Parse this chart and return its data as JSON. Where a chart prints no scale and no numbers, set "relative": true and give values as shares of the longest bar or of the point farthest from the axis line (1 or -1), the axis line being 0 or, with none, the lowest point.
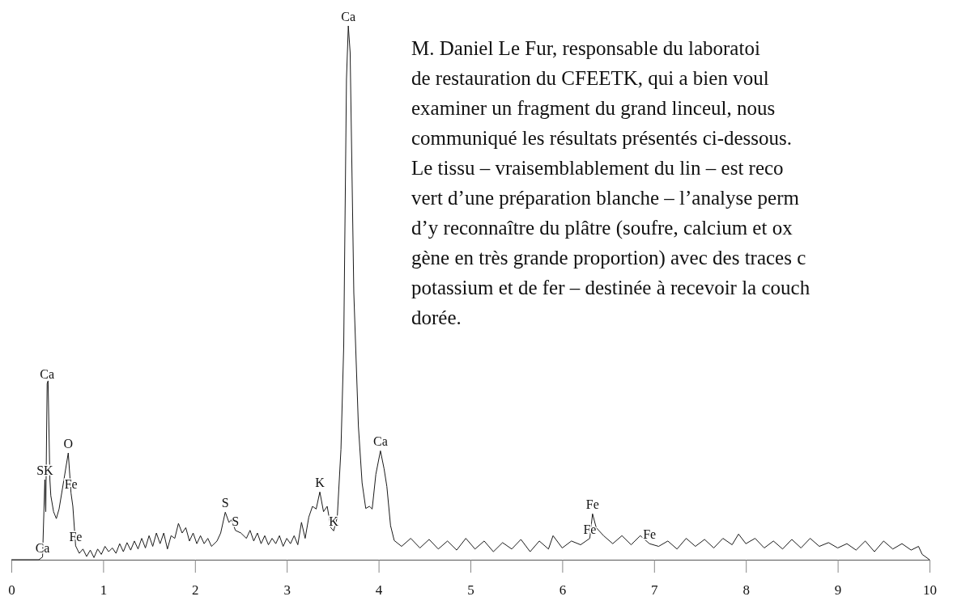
{
  "chart_data": {
    "type": "line",
    "relative": true,
    "color": "#1a1a1a",
    "xlim": [
      0,
      10
    ],
    "xticks": [
      0,
      1,
      2,
      3,
      4,
      5,
      6,
      7,
      8,
      9,
      10
    ],
    "x": [
      0,
      0.3,
      0.34,
      0.365,
      0.375,
      0.39,
      0.4,
      0.42,
      0.43,
      0.46,
      0.49,
      0.52,
      0.57,
      0.62,
      0.65,
      0.67,
      0.7,
      0.74,
      0.78,
      0.82,
      0.86,
      0.9,
      0.94,
      0.98,
      1.02,
      1.06,
      1.1,
      1.14,
      1.18,
      1.22,
      1.26,
      1.3,
      1.34,
      1.38,
      1.42,
      1.46,
      1.5,
      1.54,
      1.58,
      1.62,
      1.66,
      1.7,
      1.74,
      1.78,
      1.82,
      1.86,
      1.9,
      1.94,
      1.98,
      2.02,
      2.06,
      2.1,
      2.14,
      2.18,
      2.24,
      2.28,
      2.33,
      2.37,
      2.4,
      2.44,
      2.5,
      2.56,
      2.6,
      2.64,
      2.68,
      2.72,
      2.76,
      2.8,
      2.84,
      2.88,
      2.92,
      2.96,
      3,
      3.04,
      3.08,
      3.12,
      3.16,
      3.2,
      3.24,
      3.28,
      3.32,
      3.36,
      3.4,
      3.44,
      3.48,
      3.51,
      3.55,
      3.59,
      3.62,
      3.65,
      3.67,
      3.69,
      3.73,
      3.78,
      3.82,
      3.86,
      3.9,
      3.93,
      3.97,
      4.02,
      4.06,
      4.09,
      4.13,
      4.17,
      4.25,
      4.35,
      4.45,
      4.55,
      4.65,
      4.75,
      4.85,
      4.95,
      5.05,
      5.15,
      5.25,
      5.35,
      5.45,
      5.55,
      5.65,
      5.75,
      5.85,
      5.9,
      6,
      6.1,
      6.2,
      6.3,
      6.33,
      6.37,
      6.45,
      6.55,
      6.65,
      6.75,
      6.85,
      6.95,
      7.05,
      7.15,
      7.25,
      7.35,
      7.45,
      7.55,
      7.65,
      7.75,
      7.85,
      7.92,
      8,
      8.1,
      8.2,
      8.3,
      8.4,
      8.5,
      8.6,
      8.7,
      8.8,
      8.9,
      9,
      9.1,
      9.2,
      9.3,
      9.4,
      9.5,
      9.6,
      9.7,
      9.8,
      9.88,
      9.92,
      10
    ],
    "values": [
      0,
      0,
      0.005,
      0.15,
      0.09,
      0.33,
      0.335,
      0.15,
      0.12,
      0.09,
      0.077,
      0.095,
      0.147,
      0.2,
      0.125,
      0.1,
      0.026,
      0.012,
      0.02,
      0.006,
      0.018,
      0.004,
      0.02,
      0.01,
      0.025,
      0.015,
      0.022,
      0.012,
      0.03,
      0.015,
      0.032,
      0.018,
      0.035,
      0.02,
      0.04,
      0.022,
      0.045,
      0.025,
      0.05,
      0.03,
      0.05,
      0.02,
      0.045,
      0.04,
      0.068,
      0.05,
      0.06,
      0.035,
      0.05,
      0.03,
      0.045,
      0.03,
      0.04,
      0.025,
      0.035,
      0.05,
      0.089,
      0.07,
      0.075,
      0.055,
      0.05,
      0.04,
      0.055,
      0.035,
      0.05,
      0.03,
      0.045,
      0.028,
      0.04,
      0.03,
      0.045,
      0.025,
      0.04,
      0.03,
      0.045,
      0.028,
      0.07,
      0.04,
      0.08,
      0.1,
      0.095,
      0.127,
      0.09,
      0.1,
      0.06,
      0.054,
      0.08,
      0.207,
      0.4,
      0.9,
      1,
      0.95,
      0.5,
      0.25,
      0.144,
      0.096,
      0.1,
      0.095,
      0.16,
      0.204,
      0.17,
      0.137,
      0.064,
      0.036,
      0.025,
      0.04,
      0.022,
      0.038,
      0.02,
      0.035,
      0.018,
      0.04,
      0.02,
      0.035,
      0.015,
      0.032,
      0.02,
      0.038,
      0.015,
      0.035,
      0.02,
      0.045,
      0.022,
      0.035,
      0.028,
      0.04,
      0.086,
      0.06,
      0.045,
      0.03,
      0.045,
      0.028,
      0.045,
      0.03,
      0.025,
      0.035,
      0.02,
      0.04,
      0.025,
      0.038,
      0.022,
      0.04,
      0.028,
      0.048,
      0.03,
      0.04,
      0.022,
      0.035,
      0.02,
      0.038,
      0.022,
      0.04,
      0.025,
      0.032,
      0.022,
      0.03,
      0.018,
      0.035,
      0.015,
      0.035,
      0.02,
      0.03,
      0.018,
      0.025,
      0.01,
      0
    ],
    "annotations": [
      {
        "text": "Ca",
        "x": 3.67,
        "y": 1
      },
      {
        "text": "SK",
        "x": 0.365,
        "y": 0.15
      },
      {
        "text": "Ca",
        "x": 0.34,
        "y": 0.005
      },
      {
        "text": "Ca",
        "x": 0.39,
        "y": 0.33
      },
      {
        "text": "O",
        "x": 0.62,
        "y": 0.2
      },
      {
        "text": "Fe",
        "x": 0.65,
        "y": 0.125
      },
      {
        "text": "Fe",
        "x": 0.7,
        "y": 0.026
      },
      {
        "text": "S",
        "x": 2.33,
        "y": 0.089
      },
      {
        "text": "S",
        "x": 2.44,
        "y": 0.055
      },
      {
        "text": "K",
        "x": 3.36,
        "y": 0.127
      },
      {
        "text": "K",
        "x": 3.51,
        "y": 0.054
      },
      {
        "text": "Ca",
        "x": 4.02,
        "y": 0.204
      },
      {
        "text": "Fe",
        "x": 6.33,
        "y": 0.086
      },
      {
        "text": "Fe",
        "x": 6.3,
        "y": 0.04
      },
      {
        "text": "Fe",
        "x": 6.95,
        "y": 0.03
      },
      "M. Daniel Le Fur, responsable du laboratoi",
      "de restauration du CFEETK, qui a bien voul",
      "examiner un fragment du grand linceul, nous",
      "communiqué les résultats présentés ci-dessous.",
      "Le tissu – vraisemblablement du lin – est reco",
      "vert d’une préparation blanche – l’analyse perm",
      "d’y reconnaître du plâtre (soufre, calcium et ox",
      "gène en très grande proportion) avec des traces c",
      "potassium et de fer – destinée à recevoir la couch",
      "dorée."
    ]
  }
}
